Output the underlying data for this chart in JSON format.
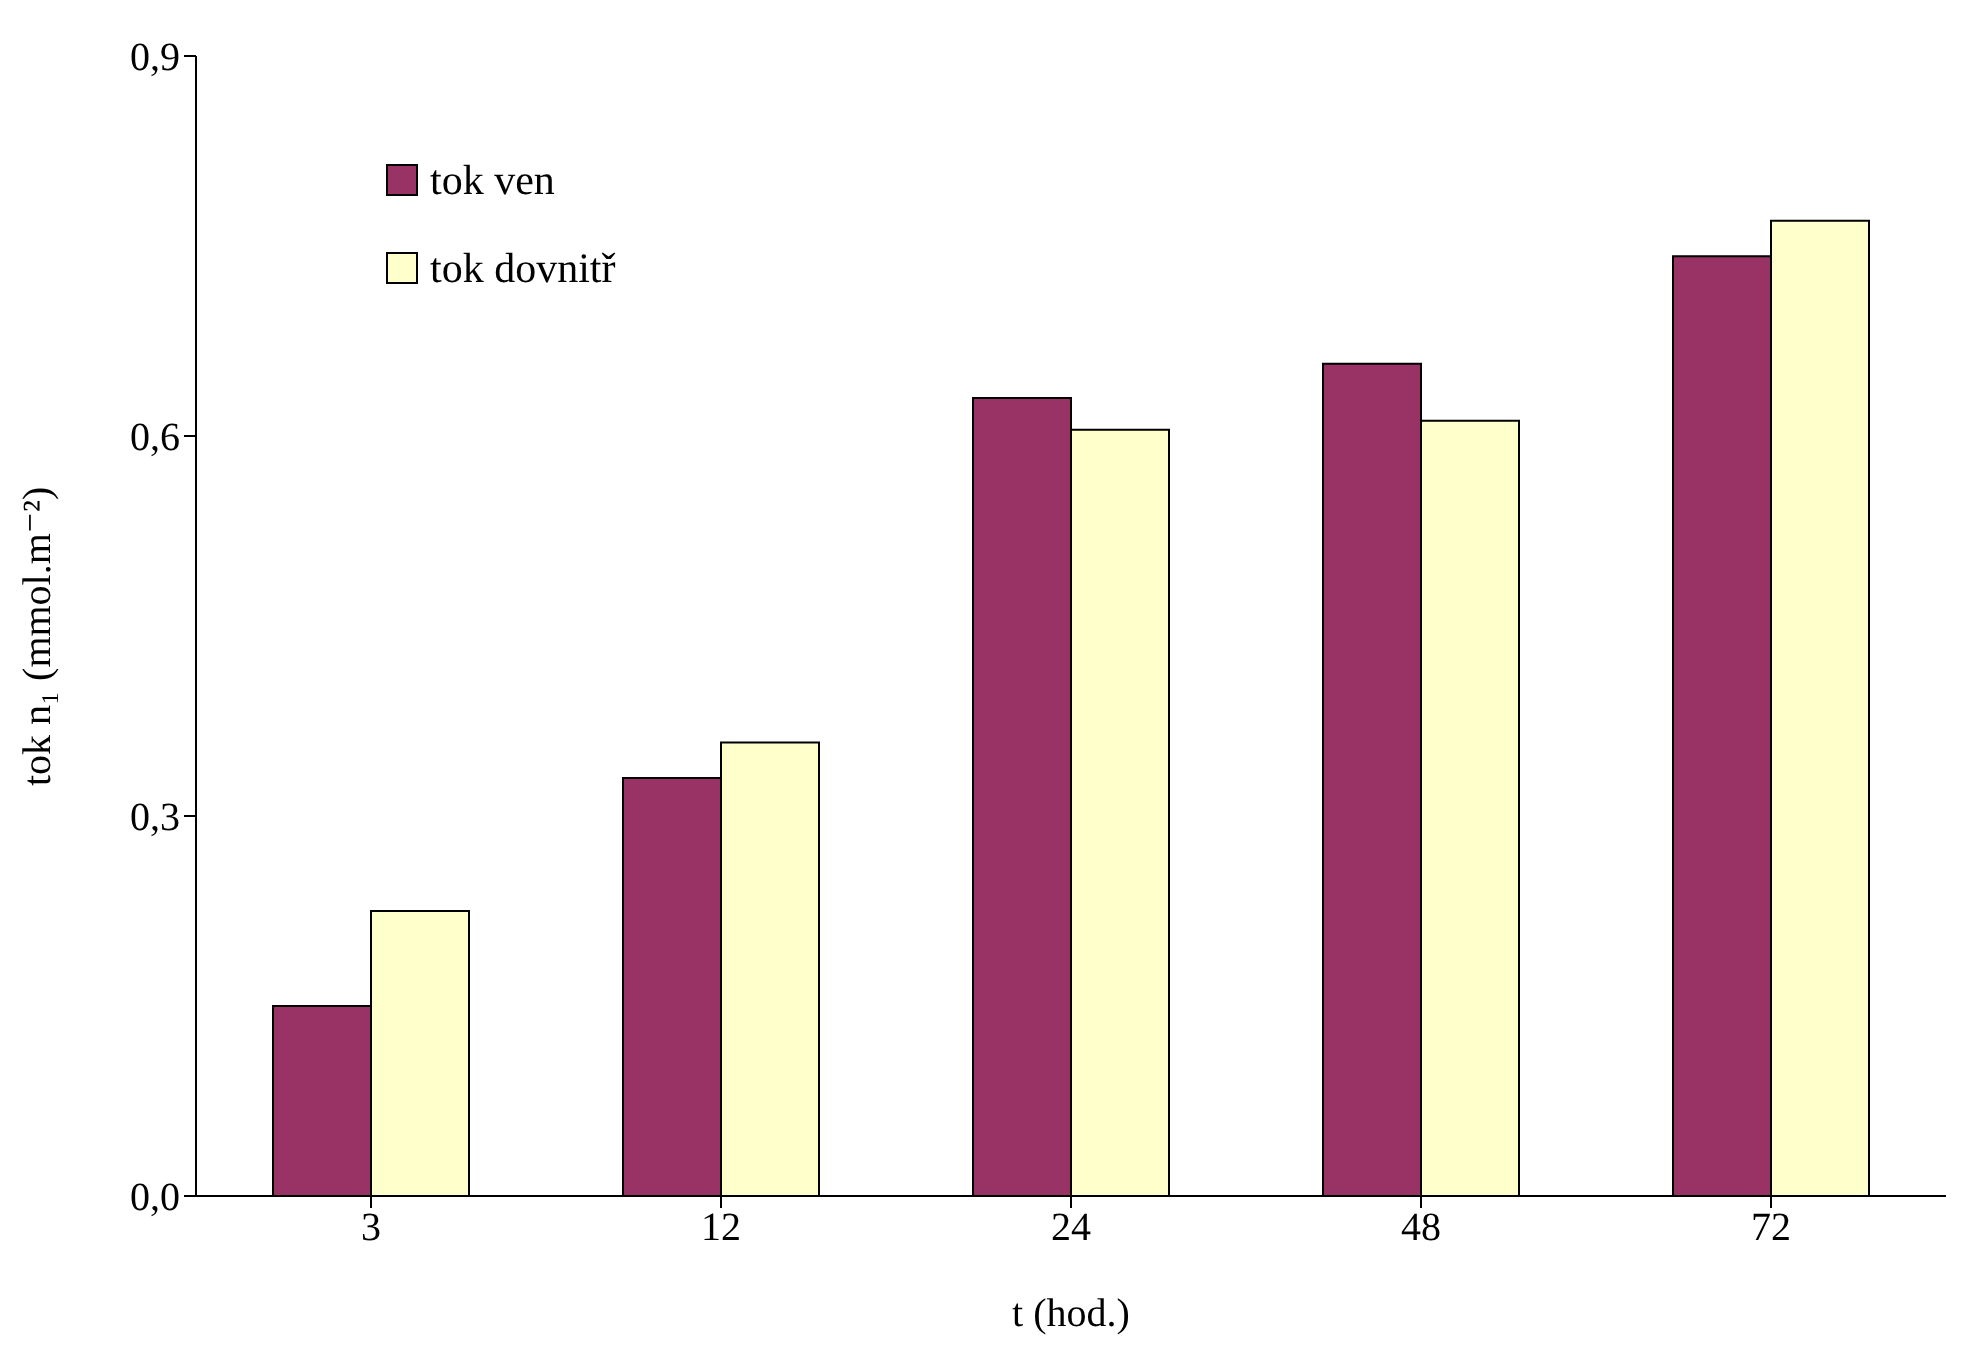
{
  "chart_data": {
    "type": "bar",
    "categories": [
      "3",
      "12",
      "24",
      "48",
      "72"
    ],
    "series": [
      {
        "name": "tok ven",
        "color": "#993366",
        "values": [
          0.15,
          0.33,
          0.63,
          0.657,
          0.742
        ]
      },
      {
        "name": "tok dovnitř",
        "color": "#ffffcc",
        "values": [
          0.225,
          0.358,
          0.605,
          0.612,
          0.77
        ]
      }
    ],
    "xlabel": "t (hod.)",
    "ylabel": "tok n₁ (mmol.m⁻²)",
    "ylim": [
      0,
      0.9
    ],
    "yticks": [
      {
        "value": 0,
        "label": "0,0"
      },
      {
        "value": 0.3,
        "label": "0,3"
      },
      {
        "value": 0.6,
        "label": "0,6"
      },
      {
        "value": 0.9,
        "label": "0,9"
      }
    ],
    "grid": false,
    "legend": "top left"
  }
}
